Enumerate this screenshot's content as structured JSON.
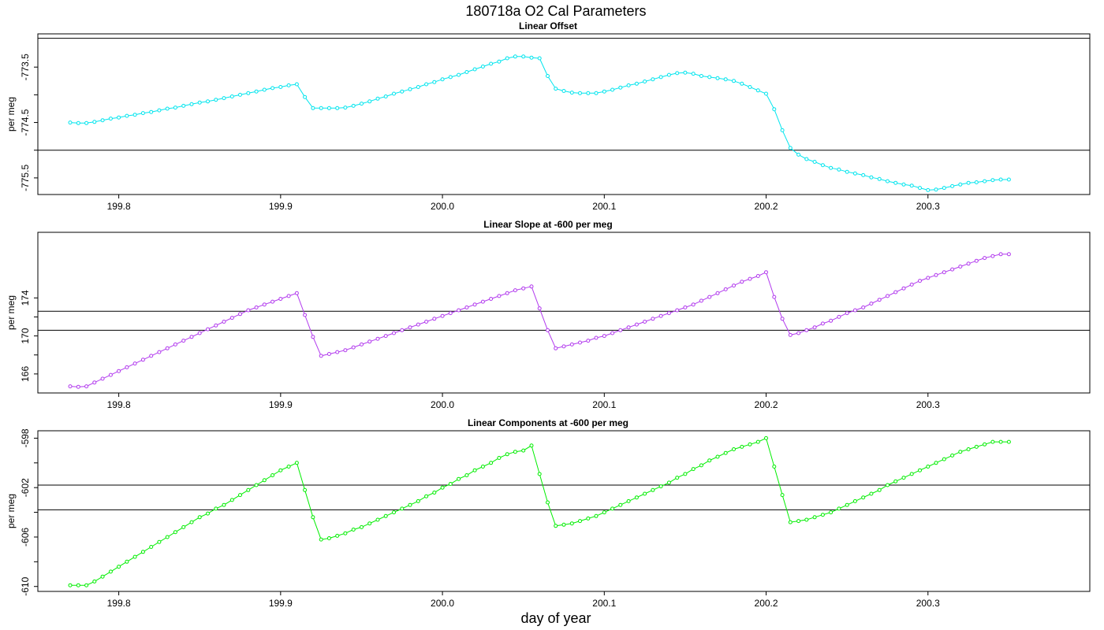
{
  "page": {
    "title": "180718a   O2 Cal Parameters",
    "xlabel": "day of year"
  },
  "chart_data": [
    {
      "type": "line",
      "title": "Linear Offset",
      "ylabel": "per meg",
      "color": "#00e5ee",
      "ylim": [
        -775.8,
        -772.9
      ],
      "yticks": [
        -773.5,
        -774.5,
        -775.5
      ],
      "ytick_labels": [
        "-773.5",
        "-774.5",
        "-775.5"
      ],
      "xlim": [
        199.75,
        200.4
      ],
      "xticks": [
        199.8,
        199.9,
        200.0,
        200.1,
        200.2,
        200.3
      ],
      "xtick_labels": [
        "199.8",
        "199.9",
        "200.0",
        "200.1",
        "200.2",
        "200.3"
      ],
      "hlines": [
        -772.98,
        -775.0
      ],
      "x": [
        199.77,
        199.775,
        199.78,
        199.785,
        199.79,
        199.795,
        199.8,
        199.805,
        199.81,
        199.815,
        199.82,
        199.825,
        199.83,
        199.835,
        199.84,
        199.845,
        199.85,
        199.855,
        199.86,
        199.865,
        199.87,
        199.875,
        199.88,
        199.885,
        199.89,
        199.895,
        199.9,
        199.905,
        199.91,
        199.915,
        199.92,
        199.925,
        199.93,
        199.935,
        199.94,
        199.945,
        199.95,
        199.955,
        199.96,
        199.965,
        199.97,
        199.975,
        199.98,
        199.985,
        199.99,
        199.995,
        200.0,
        200.005,
        200.01,
        200.015,
        200.02,
        200.025,
        200.03,
        200.035,
        200.04,
        200.045,
        200.05,
        200.055,
        200.06,
        200.065,
        200.07,
        200.075,
        200.08,
        200.085,
        200.09,
        200.095,
        200.1,
        200.105,
        200.11,
        200.115,
        200.12,
        200.125,
        200.13,
        200.135,
        200.14,
        200.145,
        200.15,
        200.155,
        200.16,
        200.165,
        200.17,
        200.175,
        200.18,
        200.185,
        200.19,
        200.195,
        200.2,
        200.205,
        200.21,
        200.215,
        200.22,
        200.225,
        200.23,
        200.235,
        200.24,
        200.245,
        200.25,
        200.255,
        200.26,
        200.265,
        200.27,
        200.275,
        200.28,
        200.285,
        200.29,
        200.295,
        200.3,
        200.305,
        200.31,
        200.315,
        200.32,
        200.325,
        200.33,
        200.335,
        200.34,
        200.345,
        200.35
      ],
      "y": [
        -774.5,
        -774.51,
        -774.51,
        -774.49,
        -774.46,
        -774.43,
        -774.41,
        -774.38,
        -774.36,
        -774.33,
        -774.31,
        -774.28,
        -774.25,
        -774.23,
        -774.2,
        -774.17,
        -774.14,
        -774.12,
        -774.09,
        -774.06,
        -774.03,
        -774.0,
        -773.97,
        -773.94,
        -773.91,
        -773.88,
        -773.86,
        -773.83,
        -773.81,
        -774.04,
        -774.24,
        -774.24,
        -774.24,
        -774.24,
        -774.23,
        -774.2,
        -774.16,
        -774.12,
        -774.07,
        -774.03,
        -773.98,
        -773.94,
        -773.9,
        -773.86,
        -773.81,
        -773.77,
        -773.72,
        -773.68,
        -773.64,
        -773.59,
        -773.54,
        -773.49,
        -773.44,
        -773.4,
        -773.34,
        -773.31,
        -773.31,
        -773.33,
        -773.34,
        -773.66,
        -773.89,
        -773.93,
        -773.96,
        -773.97,
        -773.97,
        -773.97,
        -773.94,
        -773.91,
        -773.87,
        -773.83,
        -773.8,
        -773.76,
        -773.72,
        -773.68,
        -773.64,
        -773.61,
        -773.6,
        -773.62,
        -773.66,
        -773.68,
        -773.7,
        -773.72,
        -773.75,
        -773.8,
        -773.86,
        -773.92,
        -773.98,
        -774.26,
        -774.64,
        -774.96,
        -775.08,
        -775.16,
        -775.21,
        -775.27,
        -775.32,
        -775.35,
        -775.39,
        -775.42,
        -775.45,
        -775.49,
        -775.52,
        -775.56,
        -775.59,
        -775.62,
        -775.64,
        -775.68,
        -775.72,
        -775.71,
        -775.68,
        -775.65,
        -775.62,
        -775.59,
        -775.58,
        -775.56,
        -775.54,
        -775.53,
        -775.53
      ]
    },
    {
      "type": "line",
      "title": "Linear Slope at -600 per meg",
      "ylabel": "per meg",
      "color": "#b23aee",
      "ylim": [
        164.0,
        180.9
      ],
      "yticks": [
        174,
        170,
        166
      ],
      "ytick_labels": [
        "174",
        "170",
        "166"
      ],
      "xlim": [
        199.75,
        200.4
      ],
      "xticks": [
        199.8,
        199.9,
        200.0,
        200.1,
        200.2,
        200.3
      ],
      "xtick_labels": [
        "199.8",
        "199.9",
        "200.0",
        "200.1",
        "200.2",
        "200.3"
      ],
      "hlines": [
        172.6,
        170.6
      ],
      "x": [
        199.77,
        199.775,
        199.78,
        199.785,
        199.79,
        199.795,
        199.8,
        199.805,
        199.81,
        199.815,
        199.82,
        199.825,
        199.83,
        199.835,
        199.84,
        199.845,
        199.85,
        199.855,
        199.86,
        199.865,
        199.87,
        199.875,
        199.88,
        199.885,
        199.89,
        199.895,
        199.9,
        199.905,
        199.91,
        199.915,
        199.92,
        199.925,
        199.93,
        199.935,
        199.94,
        199.945,
        199.95,
        199.955,
        199.96,
        199.965,
        199.97,
        199.975,
        199.98,
        199.985,
        199.99,
        199.995,
        200.0,
        200.005,
        200.01,
        200.015,
        200.02,
        200.025,
        200.03,
        200.035,
        200.04,
        200.045,
        200.05,
        200.055,
        200.06,
        200.065,
        200.07,
        200.075,
        200.08,
        200.085,
        200.09,
        200.095,
        200.1,
        200.105,
        200.11,
        200.115,
        200.12,
        200.125,
        200.13,
        200.135,
        200.14,
        200.145,
        200.15,
        200.155,
        200.16,
        200.165,
        200.17,
        200.175,
        200.18,
        200.185,
        200.19,
        200.195,
        200.2,
        200.205,
        200.21,
        200.215,
        200.22,
        200.225,
        200.23,
        200.235,
        200.24,
        200.245,
        200.25,
        200.255,
        200.26,
        200.265,
        200.27,
        200.275,
        200.28,
        200.285,
        200.29,
        200.295,
        200.3,
        200.305,
        200.31,
        200.315,
        200.32,
        200.325,
        200.33,
        200.335,
        200.34,
        200.345,
        200.35
      ],
      "y": [
        164.7,
        164.65,
        164.7,
        165.1,
        165.5,
        165.9,
        166.3,
        166.7,
        167.1,
        167.5,
        167.9,
        168.3,
        168.7,
        169.1,
        169.5,
        169.9,
        170.3,
        170.7,
        171.1,
        171.5,
        171.9,
        172.3,
        172.7,
        173.0,
        173.3,
        173.6,
        173.9,
        174.2,
        174.5,
        172.2,
        169.9,
        167.9,
        168.1,
        168.3,
        168.5,
        168.8,
        169.1,
        169.4,
        169.7,
        170.0,
        170.3,
        170.6,
        170.9,
        171.2,
        171.5,
        171.8,
        172.1,
        172.4,
        172.7,
        173.0,
        173.3,
        173.6,
        173.9,
        174.2,
        174.5,
        174.8,
        175.0,
        175.2,
        172.9,
        170.6,
        168.7,
        168.9,
        169.1,
        169.3,
        169.5,
        169.8,
        170.0,
        170.3,
        170.6,
        170.9,
        171.2,
        171.5,
        171.8,
        172.1,
        172.4,
        172.7,
        173.0,
        173.3,
        173.7,
        174.1,
        174.5,
        174.9,
        175.3,
        175.7,
        176.0,
        176.3,
        176.7,
        174.1,
        171.8,
        170.1,
        170.3,
        170.6,
        170.9,
        171.3,
        171.6,
        172.0,
        172.4,
        172.7,
        173.0,
        173.4,
        173.8,
        174.2,
        174.6,
        175.0,
        175.4,
        175.8,
        176.1,
        176.4,
        176.7,
        177.0,
        177.3,
        177.6,
        177.9,
        178.2,
        178.4,
        178.6,
        178.6
      ]
    },
    {
      "type": "line",
      "title": "Linear Components at -600 per meg",
      "ylabel": "per meg",
      "color": "#00ee00",
      "ylim": [
        -610.4,
        -597.4
      ],
      "yticks": [
        -598,
        -602,
        -606,
        -610
      ],
      "ytick_labels": [
        "-598",
        "-602",
        "-606",
        "-610"
      ],
      "xlim": [
        199.75,
        200.4
      ],
      "xticks": [
        199.8,
        199.9,
        200.0,
        200.1,
        200.2,
        200.3
      ],
      "xtick_labels": [
        "199.8",
        "199.9",
        "200.0",
        "200.1",
        "200.2",
        "200.3"
      ],
      "hlines": [
        -601.8,
        -603.8
      ],
      "x": [
        199.77,
        199.775,
        199.78,
        199.785,
        199.79,
        199.795,
        199.8,
        199.805,
        199.81,
        199.815,
        199.82,
        199.825,
        199.83,
        199.835,
        199.84,
        199.845,
        199.85,
        199.855,
        199.86,
        199.865,
        199.87,
        199.875,
        199.88,
        199.885,
        199.89,
        199.895,
        199.9,
        199.905,
        199.91,
        199.915,
        199.92,
        199.925,
        199.93,
        199.935,
        199.94,
        199.945,
        199.95,
        199.955,
        199.96,
        199.965,
        199.97,
        199.975,
        199.98,
        199.985,
        199.99,
        199.995,
        200.0,
        200.005,
        200.01,
        200.015,
        200.02,
        200.025,
        200.03,
        200.035,
        200.04,
        200.045,
        200.05,
        200.055,
        200.06,
        200.065,
        200.07,
        200.075,
        200.08,
        200.085,
        200.09,
        200.095,
        200.1,
        200.105,
        200.11,
        200.115,
        200.12,
        200.125,
        200.13,
        200.135,
        200.14,
        200.145,
        200.15,
        200.155,
        200.16,
        200.165,
        200.17,
        200.175,
        200.18,
        200.185,
        200.19,
        200.195,
        200.2,
        200.205,
        200.21,
        200.215,
        200.22,
        200.225,
        200.23,
        200.235,
        200.24,
        200.245,
        200.25,
        200.255,
        200.26,
        200.265,
        200.27,
        200.275,
        200.28,
        200.285,
        200.29,
        200.295,
        200.3,
        200.305,
        200.31,
        200.315,
        200.32,
        200.325,
        200.33,
        200.335,
        200.34,
        200.345,
        200.35
      ],
      "y": [
        -609.9,
        -609.9,
        -609.9,
        -609.6,
        -609.2,
        -608.8,
        -608.4,
        -608.0,
        -607.6,
        -607.2,
        -606.8,
        -606.4,
        -606.0,
        -605.6,
        -605.2,
        -604.8,
        -604.4,
        -604.1,
        -603.7,
        -603.4,
        -603.0,
        -602.6,
        -602.2,
        -601.8,
        -601.4,
        -601.0,
        -600.6,
        -600.3,
        -600.0,
        -602.2,
        -604.4,
        -606.2,
        -606.1,
        -605.9,
        -605.7,
        -605.4,
        -605.2,
        -604.9,
        -604.6,
        -604.3,
        -604.0,
        -603.7,
        -603.4,
        -603.1,
        -602.7,
        -602.4,
        -602.0,
        -601.7,
        -601.3,
        -601.0,
        -600.6,
        -600.3,
        -600.0,
        -599.6,
        -599.3,
        -599.1,
        -599.0,
        -598.6,
        -600.9,
        -603.2,
        -605.1,
        -605.0,
        -604.9,
        -604.7,
        -604.5,
        -604.3,
        -604.0,
        -603.7,
        -603.4,
        -603.1,
        -602.8,
        -602.5,
        -602.2,
        -601.9,
        -601.6,
        -601.2,
        -600.9,
        -600.5,
        -600.2,
        -599.8,
        -599.5,
        -599.2,
        -598.9,
        -598.7,
        -598.5,
        -598.3,
        -598.0,
        -600.3,
        -602.6,
        -604.8,
        -604.7,
        -604.6,
        -604.4,
        -604.2,
        -604.0,
        -603.7,
        -603.4,
        -603.1,
        -602.8,
        -602.5,
        -602.2,
        -601.8,
        -601.5,
        -601.2,
        -600.9,
        -600.6,
        -600.3,
        -600.0,
        -599.7,
        -599.4,
        -599.1,
        -598.9,
        -598.7,
        -598.5,
        -598.3,
        -598.3,
        -598.3
      ]
    }
  ]
}
